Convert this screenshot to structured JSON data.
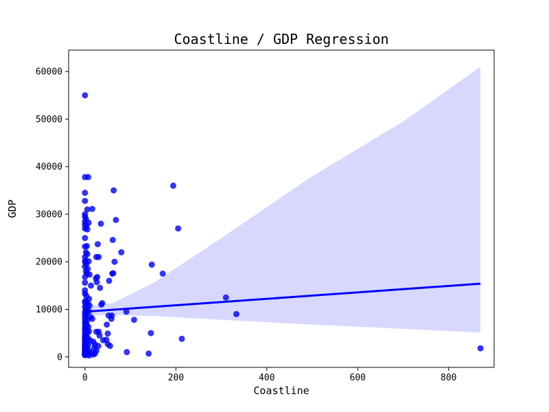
{
  "chart_data": {
    "type": "scatter",
    "title": "Coastline / GDP Regression",
    "xlabel": "Coastline",
    "ylabel": "GDP",
    "xlim": [
      -36,
      900
    ],
    "ylim": [
      -2200,
      64500
    ],
    "xticks": [
      0,
      200,
      400,
      600,
      800
    ],
    "yticks": [
      0,
      10000,
      20000,
      30000,
      40000,
      50000,
      60000
    ],
    "grid": false,
    "colors": {
      "points": "#0000ff",
      "line": "#0000ff",
      "band": "#d8d8ff"
    },
    "regression": {
      "x": [
        0,
        870
      ],
      "y": [
        9500,
        15400
      ],
      "ci_lower": [
        [
          0,
          8700
        ],
        [
          60,
          8800
        ],
        [
          150,
          8600
        ],
        [
          300,
          7800
        ],
        [
          500,
          6800
        ],
        [
          700,
          5900
        ],
        [
          870,
          5100
        ]
      ],
      "ci_upper": [
        [
          0,
          10500
        ],
        [
          60,
          11300
        ],
        [
          150,
          15500
        ],
        [
          300,
          25000
        ],
        [
          500,
          38000
        ],
        [
          700,
          49500
        ],
        [
          870,
          61000
        ]
      ]
    },
    "points": [
      [
        0,
        55000
      ],
      [
        0,
        37800
      ],
      [
        7,
        37800
      ],
      [
        0,
        34500
      ],
      [
        0,
        32800
      ],
      [
        5,
        31000
      ],
      [
        16,
        31100
      ],
      [
        0,
        30000
      ],
      [
        0,
        29500
      ],
      [
        2,
        29000
      ],
      [
        0,
        28500
      ],
      [
        8,
        28200
      ],
      [
        0,
        27800
      ],
      [
        3,
        27500
      ],
      [
        0,
        27000
      ],
      [
        5,
        26800
      ],
      [
        0,
        25000
      ],
      [
        0,
        23200
      ],
      [
        4,
        23300
      ],
      [
        2,
        22000
      ],
      [
        5,
        21600
      ],
      [
        0,
        21000
      ],
      [
        1,
        20200
      ],
      [
        0,
        20000
      ],
      [
        8,
        20100
      ],
      [
        3,
        19500
      ],
      [
        0,
        19000
      ],
      [
        6,
        18500
      ],
      [
        2,
        18000
      ],
      [
        4,
        17500
      ],
      [
        10,
        17300
      ],
      [
        0,
        16800
      ],
      [
        0,
        15600
      ],
      [
        13,
        15000
      ],
      [
        0,
        14000
      ],
      [
        0,
        13300
      ],
      [
        3,
        12800
      ],
      [
        9,
        12200
      ],
      [
        1,
        11800
      ],
      [
        0,
        11500
      ],
      [
        6,
        11300
      ],
      [
        2,
        11000
      ],
      [
        10,
        10800
      ],
      [
        0,
        10500
      ],
      [
        5,
        10200
      ],
      [
        1,
        9800
      ],
      [
        8,
        9600
      ],
      [
        0,
        9300
      ],
      [
        3,
        9000
      ],
      [
        0,
        8700
      ],
      [
        12,
        8400
      ],
      [
        0,
        8000
      ],
      [
        6,
        7800
      ],
      [
        1,
        7500
      ],
      [
        0,
        7200
      ],
      [
        2,
        7000
      ],
      [
        4,
        6700
      ],
      [
        0,
        6500
      ],
      [
        7,
        6300
      ],
      [
        1,
        6000
      ],
      [
        0,
        5800
      ],
      [
        3,
        5600
      ],
      [
        9,
        5400
      ],
      [
        0,
        5200
      ],
      [
        5,
        5000
      ],
      [
        1,
        4800
      ],
      [
        0,
        4600
      ],
      [
        2,
        4400
      ],
      [
        0,
        4200
      ],
      [
        6,
        4000
      ],
      [
        0,
        3800
      ],
      [
        3,
        3600
      ],
      [
        11,
        3500
      ],
      [
        0,
        3400
      ],
      [
        1,
        3200
      ],
      [
        0,
        3000
      ],
      [
        4,
        2900
      ],
      [
        0,
        2800
      ],
      [
        2,
        2600
      ],
      [
        7,
        2500
      ],
      [
        0,
        2400
      ],
      [
        1,
        2200
      ],
      [
        0,
        2100
      ],
      [
        3,
        2000
      ],
      [
        0,
        1900
      ],
      [
        5,
        1800
      ],
      [
        0,
        1700
      ],
      [
        1,
        1600
      ],
      [
        0,
        1500
      ],
      [
        2,
        1400
      ],
      [
        8,
        1300
      ],
      [
        0,
        1200
      ],
      [
        0,
        1100
      ],
      [
        3,
        1000
      ],
      [
        0,
        950
      ],
      [
        1,
        900
      ],
      [
        0,
        850
      ],
      [
        6,
        800
      ],
      [
        0,
        750
      ],
      [
        2,
        700
      ],
      [
        0,
        650
      ],
      [
        4,
        600
      ],
      [
        0,
        550
      ],
      [
        1,
        500
      ],
      [
        0,
        450
      ],
      [
        3,
        420
      ],
      [
        0,
        400
      ],
      [
        14,
        800
      ],
      [
        18,
        500
      ],
      [
        0,
        380
      ],
      [
        22,
        700
      ],
      [
        9,
        300
      ],
      [
        25,
        21000
      ],
      [
        30,
        21000
      ],
      [
        28,
        23700
      ],
      [
        35,
        28000
      ],
      [
        27,
        16800
      ],
      [
        24,
        16500
      ],
      [
        26,
        15700
      ],
      [
        33,
        14500
      ],
      [
        38,
        11300
      ],
      [
        36,
        11000
      ],
      [
        30,
        5300
      ],
      [
        25,
        5300
      ],
      [
        32,
        4500
      ],
      [
        40,
        3500
      ],
      [
        18,
        3200
      ],
      [
        22,
        2600
      ],
      [
        29,
        2300
      ],
      [
        20,
        1800
      ],
      [
        25,
        1300
      ],
      [
        16,
        8000
      ],
      [
        48,
        6800
      ],
      [
        52,
        8700
      ],
      [
        50,
        4900
      ],
      [
        47,
        3600
      ],
      [
        55,
        2300
      ],
      [
        50,
        2700
      ],
      [
        53,
        16000
      ],
      [
        58,
        8000
      ],
      [
        59,
        8700
      ],
      [
        60,
        17500
      ],
      [
        62,
        17600
      ],
      [
        61,
        24600
      ],
      [
        63,
        35000
      ],
      [
        65,
        20000
      ],
      [
        68,
        28800
      ],
      [
        80,
        22000
      ],
      [
        91,
        9500
      ],
      [
        108,
        7800
      ],
      [
        92,
        1000
      ],
      [
        140,
        700
      ],
      [
        145,
        5000
      ],
      [
        147,
        19400
      ],
      [
        171,
        17500
      ],
      [
        194,
        36000
      ],
      [
        205,
        27000
      ],
      [
        213,
        3800
      ],
      [
        310,
        12500
      ],
      [
        333,
        9000
      ],
      [
        870,
        1800
      ]
    ]
  }
}
